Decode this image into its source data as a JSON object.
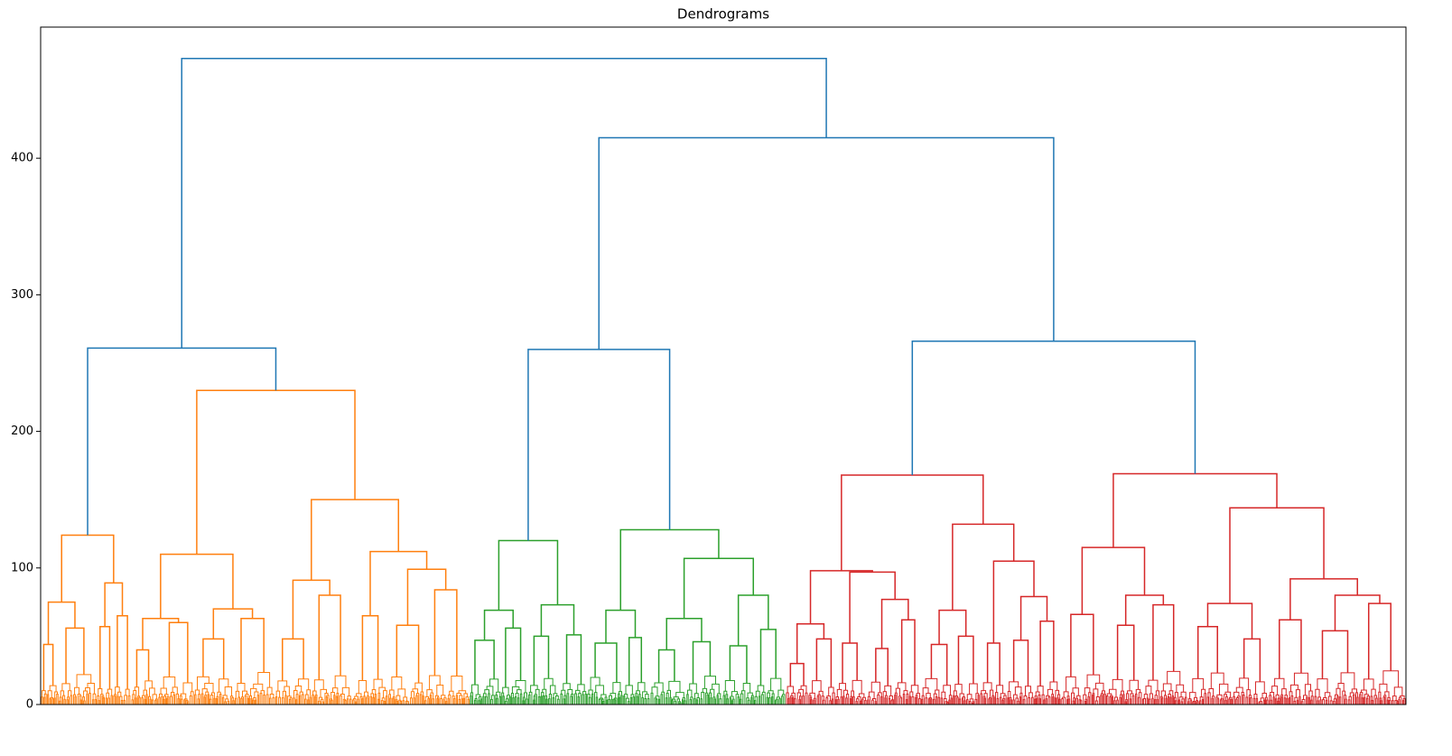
{
  "chart_data": {
    "type": "dendrogram",
    "title": "Dendrograms",
    "ylim": [
      0,
      496
    ],
    "yticks": [
      0,
      100,
      200,
      300,
      400
    ],
    "tree": {
      "height": 473,
      "color": "#1f77b4",
      "children": [
        {
          "height": 261,
          "color": "#ff7f0e",
          "children": [
            {
              "height": 124,
              "children": [
                {
                  "height": 75,
                  "children": [
                    {
                      "height": 44,
                      "n": 20
                    },
                    {
                      "height": 56,
                      "n": 42
                    }
                  ]
                },
                {
                  "height": 89,
                  "children": [
                    {
                      "height": 57,
                      "n": 18
                    },
                    {
                      "height": 65,
                      "n": 20
                    }
                  ]
                }
              ]
            },
            {
              "height": 230,
              "children": [
                {
                  "height": 110,
                  "children": [
                    {
                      "height": 63,
                      "children": [
                        {
                          "height": 40,
                          "n": 30
                        },
                        {
                          "height": 60,
                          "n": 40
                        }
                      ]
                    },
                    {
                      "height": 70,
                      "children": [
                        {
                          "height": 48,
                          "n": 45
                        },
                        {
                          "height": 63,
                          "n": 45
                        }
                      ]
                    }
                  ]
                },
                {
                  "height": 150,
                  "children": [
                    {
                      "height": 91,
                      "children": [
                        {
                          "height": 48,
                          "n": 40
                        },
                        {
                          "height": 80,
                          "n": 45
                        }
                      ]
                    },
                    {
                      "height": 112,
                      "children": [
                        {
                          "height": 65,
                          "n": 40
                        },
                        {
                          "height": 99,
                          "children": [
                            {
                              "height": 58,
                              "n": 40
                            },
                            {
                              "height": 84,
                              "n": 50
                            }
                          ]
                        }
                      ]
                    }
                  ]
                }
              ]
            }
          ]
        },
        {
          "height": 415,
          "children": [
            {
              "height": 260,
              "color": "#2ca02c",
              "children": [
                {
                  "height": 120,
                  "children": [
                    {
                      "height": 69,
                      "children": [
                        {
                          "height": 47,
                          "n": 35
                        },
                        {
                          "height": 56,
                          "n": 30
                        }
                      ]
                    },
                    {
                      "height": 73,
                      "children": [
                        {
                          "height": 50,
                          "n": 35
                        },
                        {
                          "height": 51,
                          "n": 30
                        }
                      ]
                    }
                  ]
                },
                {
                  "height": 128,
                  "children": [
                    {
                      "height": 69,
                      "children": [
                        {
                          "height": 45,
                          "n": 40
                        },
                        {
                          "height": 49,
                          "n": 30
                        }
                      ]
                    },
                    {
                      "height": 107,
                      "children": [
                        {
                          "height": 63,
                          "children": [
                            {
                              "height": 40,
                              "n": 40
                            },
                            {
                              "height": 46,
                              "n": 40
                            }
                          ]
                        },
                        {
                          "height": 80,
                          "children": [
                            {
                              "height": 43,
                              "n": 35
                            },
                            {
                              "height": 55,
                              "n": 35
                            }
                          ]
                        }
                      ]
                    }
                  ]
                }
              ]
            },
            {
              "height": 266,
              "color": "#d62728",
              "children": [
                {
                  "height": 168,
                  "children": [
                    {
                      "height": 98,
                      "children": [
                        {
                          "height": 59,
                          "children": [
                            {
                              "height": 30,
                              "n": 25
                            },
                            {
                              "height": 48,
                              "n": 30
                            }
                          ]
                        },
                        {
                          "height": 97,
                          "children": [
                            {
                              "height": 45,
                              "n": 35
                            },
                            {
                              "height": 77,
                              "children": [
                                {
                                  "height": 41,
                                  "n": 30
                                },
                                {
                                  "height": 62,
                                  "n": 30
                                }
                              ]
                            }
                          ]
                        }
                      ]
                    },
                    {
                      "height": 132,
                      "children": [
                        {
                          "height": 69,
                          "children": [
                            {
                              "height": 44,
                              "n": 35
                            },
                            {
                              "height": 50,
                              "n": 30
                            }
                          ]
                        },
                        {
                          "height": 105,
                          "children": [
                            {
                              "height": 45,
                              "n": 30
                            },
                            {
                              "height": 79,
                              "children": [
                                {
                                  "height": 47,
                                  "n": 30
                                },
                                {
                                  "height": 61,
                                  "n": 30
                                }
                              ]
                            }
                          ]
                        }
                      ]
                    }
                  ]
                },
                {
                  "height": 169,
                  "children": [
                    {
                      "height": 115,
                      "children": [
                        {
                          "height": 66,
                          "n": 50
                        },
                        {
                          "height": 80,
                          "children": [
                            {
                              "height": 58,
                              "n": 40
                            },
                            {
                              "height": 73,
                              "n": 50
                            }
                          ]
                        }
                      ]
                    },
                    {
                      "height": 144,
                      "children": [
                        {
                          "height": 74,
                          "children": [
                            {
                              "height": 57,
                              "n": 50
                            },
                            {
                              "height": 48,
                              "n": 40
                            }
                          ]
                        },
                        {
                          "height": 92,
                          "children": [
                            {
                              "height": 62,
                              "n": 50
                            },
                            {
                              "height": 80,
                              "children": [
                                {
                                  "height": 54,
                                  "n": 50
                                },
                                {
                                  "height": 74,
                                  "n": 52
                                }
                              ]
                            }
                          ]
                        }
                      ]
                    }
                  ]
                }
              ]
            }
          ]
        }
      ]
    }
  }
}
